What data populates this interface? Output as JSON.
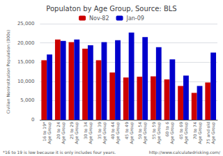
{
  "chart_data": {
    "type": "bar",
    "title": "Populaton by Age Group, Source: BLS",
    "ylabel": "Civilian Noninstitution Population (000s)",
    "categories": [
      "16 to 19*\nAge Group",
      "20 to 24\nAge Group",
      "25 to 29\nAge Group",
      "30 to 34\nAge Group",
      "35 to 39\nAge Group",
      "40 to 44\nAge Group",
      "45 to 49\nAge Group",
      "50 to 54\nAge Group",
      "55 to 59\nAge Group",
      "60 to 6\nAge Group",
      "65 to 69\nAge Group",
      "70 to 74\nAge Group",
      "75 and old\nAge Group"
    ],
    "series": [
      {
        "name": "Nov-82",
        "color": "#cc0000",
        "values": [
          15500,
          20900,
          20200,
          18500,
          15500,
          12300,
          11000,
          11200,
          11300,
          10500,
          8800,
          7000,
          9700
        ]
      },
      {
        "name": "Jan-09",
        "color": "#0000cc",
        "values": [
          17000,
          20500,
          20900,
          19400,
          20200,
          20700,
          22700,
          21500,
          18900,
          15700,
          11500,
          8800,
          17500
        ]
      }
    ],
    "ylim": [
      0,
      25000
    ],
    "yticks": [
      0,
      {
        "value": 5000,
        "label": "5,000"
      },
      {
        "value": 10000,
        "label": "10,000"
      },
      {
        "value": 15000,
        "label": "15,000"
      },
      {
        "value": 20000,
        "label": "20,000"
      },
      {
        "value": 25000,
        "label": "25,000"
      }
    ],
    "grid": true,
    "legend": "upper center",
    "annotations": [
      "*16 to 19 is low because it is only includes four years.",
      "http://www.calculatedrisking.com/"
    ]
  }
}
